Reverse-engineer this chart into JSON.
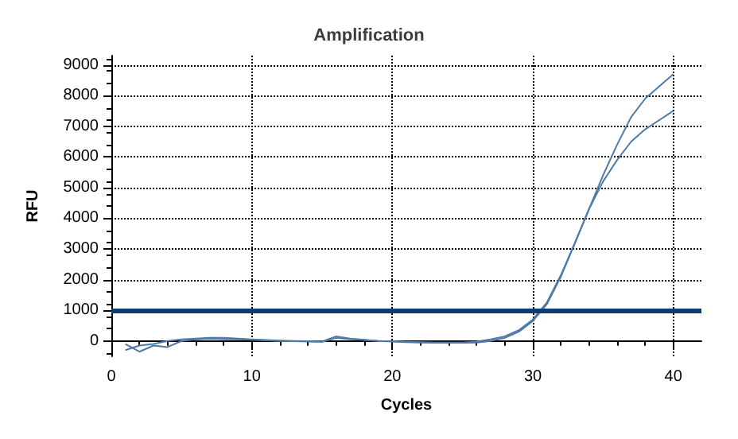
{
  "chart_data": {
    "type": "line",
    "title": "Amplification",
    "xlabel": "Cycles",
    "ylabel": "RFU",
    "x": [
      1,
      2,
      3,
      4,
      5,
      6,
      7,
      8,
      9,
      10,
      11,
      12,
      13,
      14,
      15,
      16,
      17,
      18,
      19,
      20,
      21,
      22,
      23,
      24,
      25,
      26,
      27,
      28,
      29,
      30,
      31,
      32,
      33,
      34,
      35,
      36,
      37,
      38,
      39,
      40
    ],
    "series": [
      {
        "color": "#4f79a6",
        "values": [
          -300,
          -150,
          -100,
          0,
          50,
          80,
          100,
          100,
          80,
          50,
          30,
          10,
          0,
          -10,
          -20,
          150,
          80,
          40,
          0,
          -20,
          -40,
          -50,
          -60,
          -60,
          -60,
          -50,
          0,
          100,
          300,
          650,
          1200,
          2100,
          3200,
          4300,
          5400,
          6400,
          7300,
          7900,
          8300,
          8700
        ]
      },
      {
        "color": "#4f79a6",
        "values": [
          -100,
          -350,
          -150,
          -200,
          0,
          50,
          80,
          60,
          50,
          40,
          20,
          0,
          -10,
          -20,
          -30,
          100,
          60,
          30,
          0,
          -10,
          -30,
          -40,
          -50,
          -50,
          -50,
          -20,
          50,
          150,
          350,
          700,
          1250,
          2150,
          3200,
          4300,
          5200,
          5900,
          6500,
          6900,
          7200,
          7500
        ]
      }
    ],
    "xlim": [
      0,
      42
    ],
    "xticks": [
      0,
      10,
      20,
      30,
      40
    ],
    "ylim": [
      -500,
      9300
    ],
    "yticks": [
      0,
      1000,
      2000,
      3000,
      4000,
      5000,
      6000,
      7000,
      8000,
      9000
    ],
    "ref_lines": [
      {
        "axis": "y",
        "value": 1000,
        "color": "#0b3c73"
      }
    ],
    "grid": true,
    "marker": "none",
    "line_style": "solid"
  }
}
